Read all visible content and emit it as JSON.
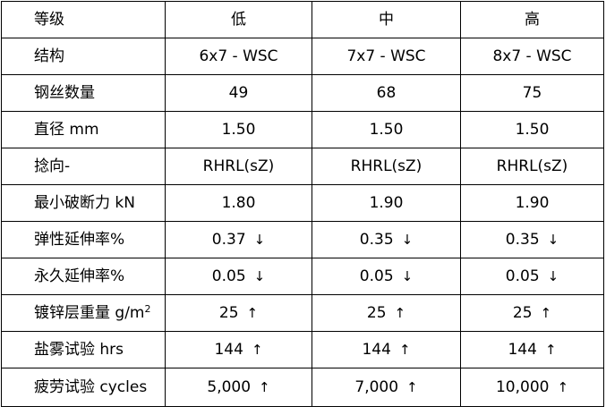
{
  "header": {
    "label": "等级",
    "grades": [
      "低",
      "中",
      "高"
    ]
  },
  "rows": [
    {
      "label": "结构",
      "values": [
        "6x7 - WSC",
        "7x7 - WSC",
        "8x7 - WSC"
      ],
      "arrow": ""
    },
    {
      "label": "钢丝数量",
      "values": [
        "49",
        "68",
        "75"
      ],
      "arrow": ""
    },
    {
      "label": "直径 mm",
      "values": [
        "1.50",
        "1.50",
        "1.50"
      ],
      "arrow": ""
    },
    {
      "label": "捻向-",
      "values": [
        "RHRL(sZ)",
        "RHRL(sZ)",
        "RHRL(sZ)"
      ],
      "arrow": ""
    },
    {
      "label": "最小破断力 kN",
      "values": [
        "1.80",
        "1.90",
        "1.90"
      ],
      "arrow": ""
    },
    {
      "label": "弹性延伸率%",
      "values": [
        "0.37",
        "0.35",
        "0.35"
      ],
      "arrow": "↓"
    },
    {
      "label": "永久延伸率%",
      "values": [
        "0.05",
        "0.05",
        "0.05"
      ],
      "arrow": "↓"
    },
    {
      "label": "镀锌层重量 g/m",
      "label_sup": "2",
      "values": [
        "25",
        "25",
        "25"
      ],
      "arrow": "↑"
    },
    {
      "label": "盐雾试验 hrs",
      "values": [
        "144",
        "144",
        "144"
      ],
      "arrow": "↑"
    },
    {
      "label": "疲劳试验 cycles",
      "values": [
        "5,000",
        "7,000",
        "10,000"
      ],
      "arrow": "↑"
    }
  ]
}
